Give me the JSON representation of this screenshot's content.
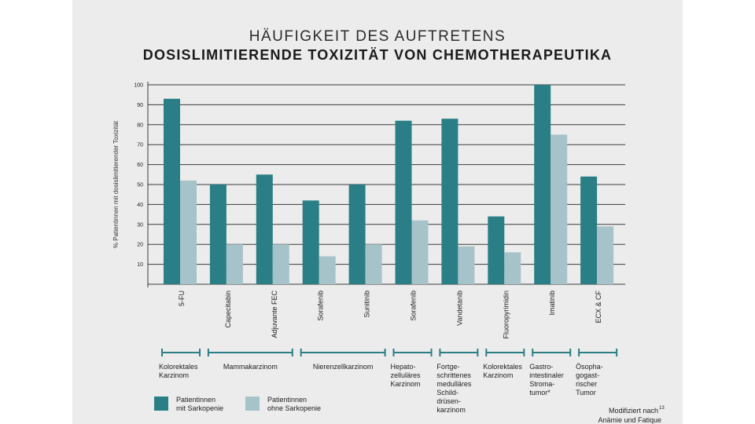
{
  "title_line1": "HÄUFIGKEIT DES AUFTRETENS",
  "title_line2": "DOSISLIMITIERENDE TOXIZITÄT VON CHEMOTHERAPEUTIKA",
  "footnote": {
    "line1": "Modifiziert nach",
    "sup": "13",
    "line2": "Anämie und Fatique"
  },
  "legend": [
    {
      "name": "Patientinnen mit Sarkopenie",
      "lines": [
        "Patientinnen",
        "mit Sarkopenie"
      ],
      "color": "#2a7f86"
    },
    {
      "name": "Patientinnen ohne Sarkopenie",
      "lines": [
        "Patientinnen",
        "ohne Sarkopenie"
      ],
      "color": "#a7c3ca"
    }
  ],
  "groups": [
    {
      "label": [
        "Kolorektales",
        "Karzinom"
      ],
      "start": 0,
      "end": 0
    },
    {
      "label": [
        "Mammakarzinom"
      ],
      "start": 1,
      "end": 2
    },
    {
      "label": [
        "Nierenzellkarzinom"
      ],
      "start": 3,
      "end": 4
    },
    {
      "label": [
        "Hepato-",
        "zelluläres",
        "Karzinom"
      ],
      "start": 5,
      "end": 5
    },
    {
      "label": [
        "Fortge-",
        "schrittenes",
        "medulläres",
        "Schild-",
        "drüsen-",
        "karzinom"
      ],
      "start": 6,
      "end": 6
    },
    {
      "label": [
        "Kolorektales",
        "Karzinom"
      ],
      "start": 7,
      "end": 7
    },
    {
      "label": [
        "Gastro-",
        "intestinaler",
        "Stroma-",
        "tumor*"
      ],
      "start": 8,
      "end": 8
    },
    {
      "label": [
        "Ösopha-",
        "gogast-",
        "rischer",
        "Tumor"
      ],
      "start": 9,
      "end": 9
    }
  ],
  "chart_data": {
    "type": "bar",
    "title": "HÄUFIGKEIT DES AUFTRETENS DOSISLIMITIERENDE TOXIZITÄT VON CHEMOTHERAPEUTIKA",
    "xlabel": "",
    "ylabel": "% Patientinnen mit dosislimitierender Toxizität",
    "ylim": [
      0,
      100
    ],
    "yticks": [
      10,
      20,
      30,
      40,
      50,
      60,
      70,
      80,
      90,
      100
    ],
    "grid": true,
    "categories": [
      "5-FU",
      "Capecitabin",
      "Adjuvante FEC",
      "Sorafenib",
      "Sunitinib",
      "Sorafenib",
      "Vandetanib",
      "Fluoropyrimidin",
      "Imatinib",
      "ECX & CF"
    ],
    "series": [
      {
        "name": "Patientinnen mit Sarkopenie",
        "color": "#2a7f86",
        "values": [
          93,
          50,
          55,
          42,
          50,
          82,
          83,
          34,
          100,
          54
        ]
      },
      {
        "name": "Patientinnen ohne Sarkopenie",
        "color": "#a7c3ca",
        "values": [
          52,
          20,
          20,
          14,
          20,
          32,
          19,
          16,
          75,
          29
        ]
      }
    ]
  }
}
